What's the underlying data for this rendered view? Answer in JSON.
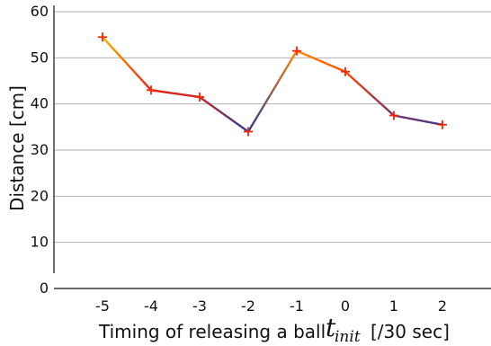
{
  "chart_data": {
    "type": "line",
    "x": [
      -5,
      -4,
      -3,
      -2,
      -1,
      0,
      1,
      2
    ],
    "x_tick_labels": [
      "-5",
      "-4",
      "-3",
      "-2",
      "-1",
      "0",
      "1",
      "2"
    ],
    "values": [
      54.5,
      43,
      41.5,
      34,
      51.5,
      47,
      37.5,
      35.5
    ],
    "y_tick_labels": [
      "0",
      "10",
      "20",
      "30",
      "40",
      "50",
      "60"
    ],
    "ylim": [
      0,
      60
    ],
    "xlim": [
      -6,
      3
    ],
    "ylabel": "Distance [cm]",
    "xlabel": {
      "prefix": "Timing of releasing a ball",
      "symbol": "t",
      "subscript": "init",
      "unit": "[/30 sec]"
    },
    "grid": true,
    "marker": "+",
    "colors": {
      "marker": "#ff2200",
      "high": "#ffb300",
      "mid": "#ff2200",
      "low": "#2b3b9c",
      "grid": "#b0b0b0",
      "axis": "#111111"
    }
  }
}
